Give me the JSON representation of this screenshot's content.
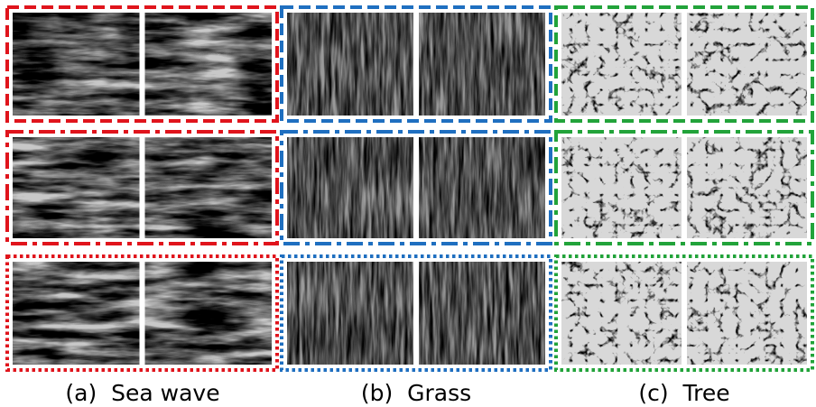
{
  "captions": [
    "(a)  Sea wave",
    "(b)  Grass",
    "(c)  Tree"
  ]
}
